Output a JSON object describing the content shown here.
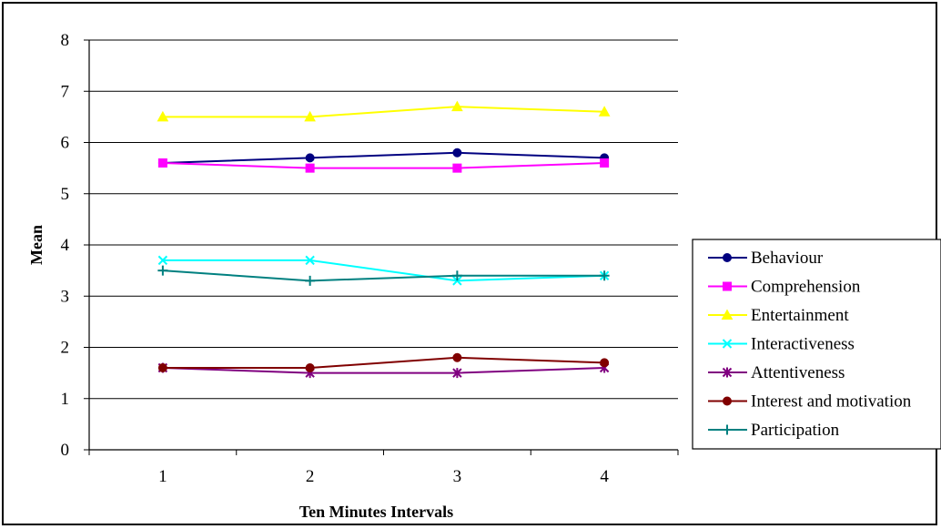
{
  "chart_data": {
    "type": "line",
    "title": "",
    "xlabel": "Ten Minutes Intervals",
    "ylabel": "Mean",
    "categories": [
      "1",
      "2",
      "3",
      "4"
    ],
    "ylim": [
      0,
      8
    ],
    "yticks": [
      "0",
      "1",
      "2",
      "3",
      "4",
      "5",
      "6",
      "7",
      "8"
    ],
    "grid": "horizontal",
    "legend_position": "right",
    "series": [
      {
        "name": "Behaviour",
        "values": [
          5.6,
          5.7,
          5.8,
          5.7
        ],
        "color": "#000080",
        "marker": "circle"
      },
      {
        "name": "Comprehension",
        "values": [
          5.6,
          5.5,
          5.5,
          5.6
        ],
        "color": "#ff00ff",
        "marker": "square"
      },
      {
        "name": "Entertainment",
        "values": [
          6.5,
          6.5,
          6.7,
          6.6
        ],
        "color": "#ffff00",
        "marker": "triangle"
      },
      {
        "name": "Interactiveness",
        "values": [
          3.7,
          3.7,
          3.3,
          3.4
        ],
        "color": "#00ffff",
        "marker": "x"
      },
      {
        "name": "Attentiveness",
        "values": [
          1.6,
          1.5,
          1.5,
          1.6
        ],
        "color": "#800080",
        "marker": "star"
      },
      {
        "name": "Interest and motivation",
        "values": [
          1.6,
          1.6,
          1.8,
          1.7
        ],
        "color": "#800000",
        "marker": "circle"
      },
      {
        "name": "Participation",
        "values": [
          3.5,
          3.3,
          3.4,
          3.4
        ],
        "color": "#008080",
        "marker": "plus"
      }
    ]
  }
}
